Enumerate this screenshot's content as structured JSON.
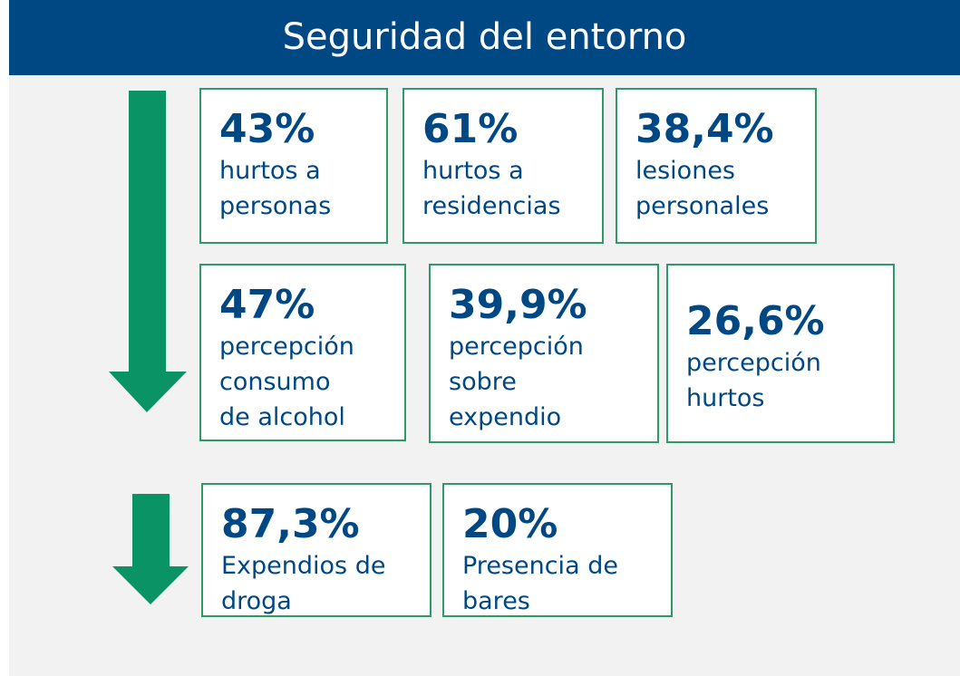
{
  "header": {
    "title": "Seguridad del entorno"
  },
  "cards": [
    {
      "value": "43%",
      "label": [
        "hurtos a",
        "personas"
      ]
    },
    {
      "value": "61%",
      "label": [
        "hurtos a",
        "residencias"
      ]
    },
    {
      "value": "38,4%",
      "label": [
        "lesiones",
        "personales"
      ]
    },
    {
      "value": "47%",
      "label": [
        "percepción",
        "consumo",
        "de alcohol"
      ]
    },
    {
      "value": "39,9%",
      "label": [
        "percepción",
        "sobre",
        "expendio"
      ]
    },
    {
      "value": "26,6%",
      "label": [
        "percepción",
        "hurtos"
      ]
    },
    {
      "value": "87,3%",
      "label": [
        "Expendios de",
        "droga"
      ]
    },
    {
      "value": "20%",
      "label": [
        "Presencia de",
        "bares"
      ]
    }
  ]
}
